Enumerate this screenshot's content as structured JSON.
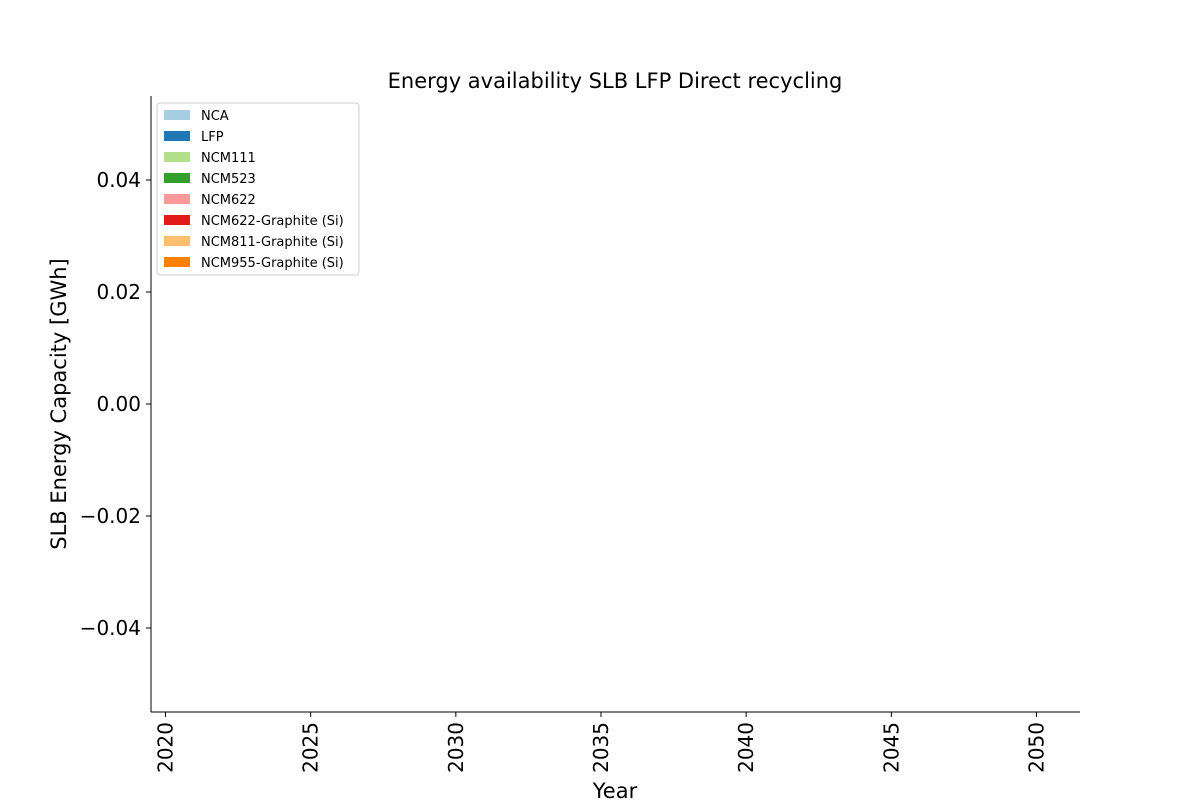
{
  "chart_data": {
    "type": "area",
    "title": "Energy availability SLB LFP Direct recycling",
    "xlabel": "Year",
    "ylabel": "SLB Energy Capacity [GWh]",
    "xlim": [
      2019.5,
      2051.5
    ],
    "ylim": [
      -0.055,
      0.055
    ],
    "x_ticks": [
      2020,
      2025,
      2030,
      2035,
      2040,
      2045,
      2050
    ],
    "y_ticks": [
      -0.04,
      -0.02,
      0.0,
      0.02,
      0.04
    ],
    "y_tick_labels": [
      "−0.04",
      "−0.02",
      "0.00",
      "0.02",
      "0.04"
    ],
    "grid": false,
    "legend_position": "top-left",
    "series": [
      {
        "name": "NCA",
        "color": "#a6cee3",
        "values": []
      },
      {
        "name": "LFP",
        "color": "#1f78b4",
        "values": []
      },
      {
        "name": "NCM111",
        "color": "#b2df8a",
        "values": []
      },
      {
        "name": "NCM523",
        "color": "#33a02c",
        "values": []
      },
      {
        "name": "NCM622",
        "color": "#fb9a99",
        "values": []
      },
      {
        "name": "NCM622-Graphite (Si)",
        "color": "#e31a1c",
        "values": []
      },
      {
        "name": "NCM811-Graphite (Si)",
        "color": "#fdbf6f",
        "values": []
      },
      {
        "name": "NCM955-Graphite (Si)",
        "color": "#ff7f00",
        "values": []
      }
    ]
  }
}
